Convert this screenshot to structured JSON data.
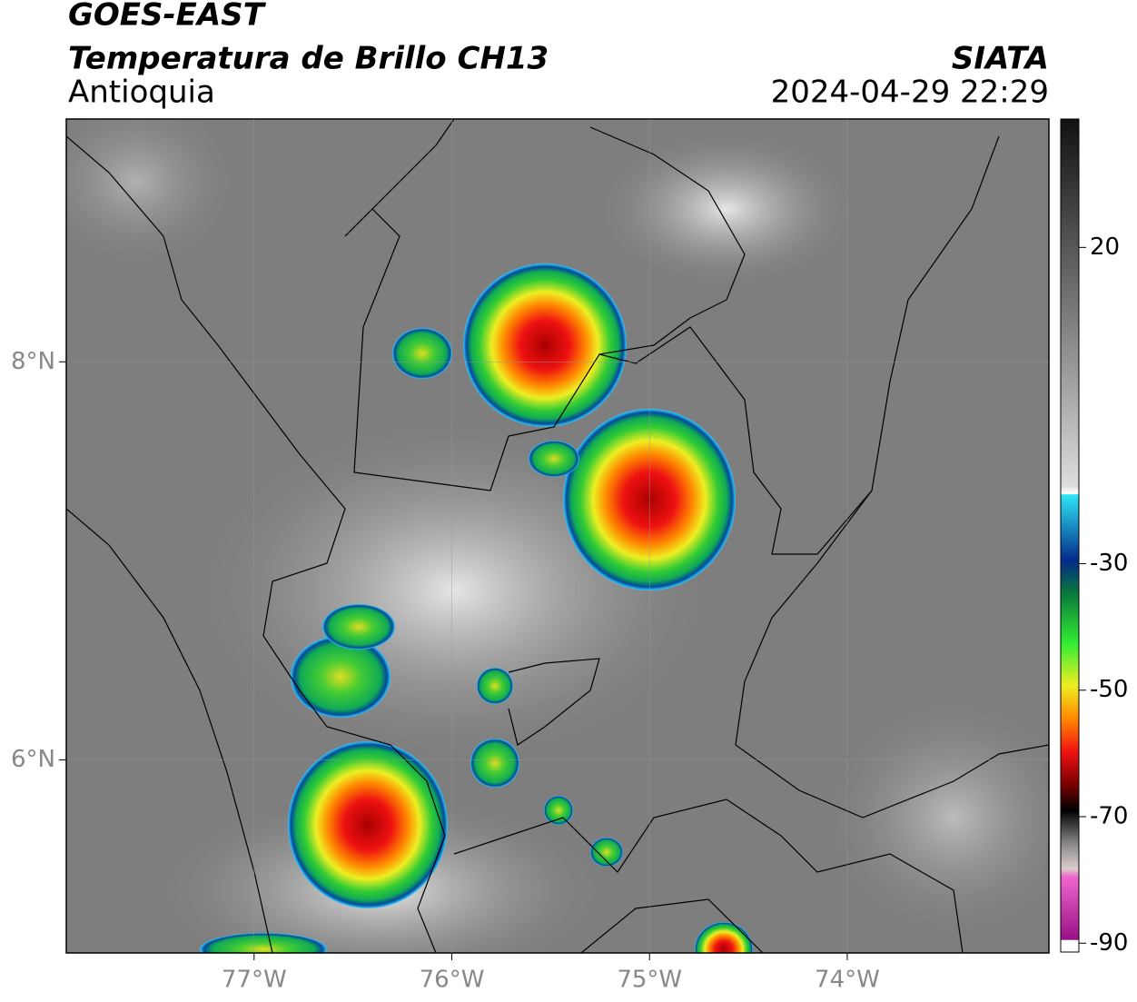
{
  "header": {
    "source": "GOES-EAST",
    "product": "Temperatura de Brillo CH13",
    "region": "Antioquia",
    "agency": "SIATA",
    "datetime": "2024-04-29 22:29"
  },
  "map": {
    "xlim": [
      -77.95,
      -72.98
    ],
    "ylim": [
      5.03,
      9.22
    ],
    "xticks": [
      {
        "value": -77,
        "label": "77°W"
      },
      {
        "value": -76,
        "label": "76°W"
      },
      {
        "value": -75,
        "label": "75°W"
      },
      {
        "value": -74,
        "label": "74°W"
      }
    ],
    "yticks": [
      {
        "value": 6,
        "label": "6°N"
      },
      {
        "value": 8,
        "label": "8°N"
      }
    ]
  },
  "colorbar": {
    "lim": [
      -91.4,
      40.3
    ],
    "ticks": [
      20,
      -30,
      -50,
      -70,
      -90
    ]
  }
}
